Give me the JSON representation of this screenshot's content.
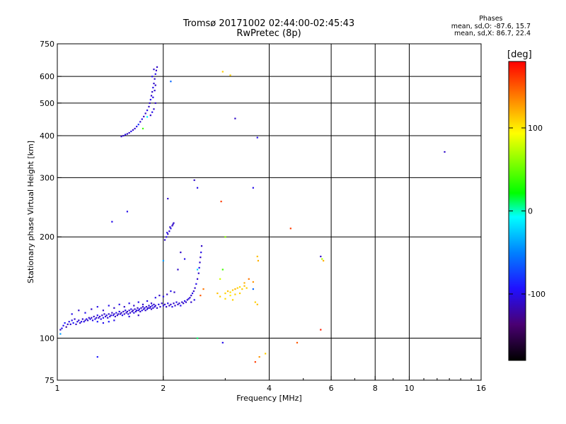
{
  "title": "Tromsø 20171002 02:44:00-02:45:43",
  "subtitle": "RwPretec (8p)",
  "stats": {
    "heading": "Phases",
    "line_o": "mean, sd,O: -87.6, 15.7",
    "line_x": "mean, sd,X:  86.7, 22.4"
  },
  "colorbar": {
    "label": "[deg]",
    "min": -180,
    "max": 180,
    "ticks": [
      {
        "value": 100,
        "label": "100"
      },
      {
        "value": 0,
        "label": "0"
      },
      {
        "value": -100,
        "label": "-100"
      }
    ]
  },
  "chart_data": {
    "type": "scatter",
    "xlabel": "Frequency [MHz]",
    "ylabel": "Stationary phase Virtual Height [km]",
    "xscale": "log",
    "yscale": "log",
    "xlim": [
      1,
      16
    ],
    "ylim": [
      75,
      750
    ],
    "xticks": [
      {
        "value": 1,
        "label": "1"
      },
      {
        "value": 2,
        "label": "2"
      },
      {
        "value": 4,
        "label": "4"
      },
      {
        "value": 6,
        "label": "6"
      },
      {
        "value": 8,
        "label": "8"
      },
      {
        "value": 10,
        "label": "10"
      },
      {
        "value": 16,
        "label": "16"
      }
    ],
    "xgrid": [
      2,
      4,
      6,
      8,
      10
    ],
    "yticks": [
      {
        "value": 75,
        "label": "75"
      },
      {
        "value": 100,
        "label": "100"
      },
      {
        "value": 200,
        "label": "200"
      },
      {
        "value": 300,
        "label": "300"
      },
      {
        "value": 400,
        "label": "400"
      },
      {
        "value": 500,
        "label": "500"
      },
      {
        "value": 600,
        "label": "600"
      },
      {
        "value": 750,
        "label": "750"
      }
    ],
    "ygrid": [
      100,
      200,
      300,
      400,
      500,
      600
    ],
    "grid": true,
    "color_encoding": "phase [deg]",
    "points": [
      [
        1.02,
        106,
        -110
      ],
      [
        1.03,
        107,
        -100
      ],
      [
        1.04,
        109,
        -100
      ],
      [
        1.05,
        111,
        -90
      ],
      [
        1.06,
        108,
        -120
      ],
      [
        1.07,
        110,
        -110
      ],
      [
        1.08,
        112,
        -100
      ],
      [
        1.09,
        110,
        -110
      ],
      [
        1.1,
        113,
        -100
      ],
      [
        1.11,
        111,
        -90
      ],
      [
        1.12,
        114,
        -110
      ],
      [
        1.13,
        110,
        -110
      ],
      [
        1.14,
        112,
        -100
      ],
      [
        1.15,
        113,
        -110
      ],
      [
        1.16,
        111,
        -110
      ],
      [
        1.17,
        112,
        -100
      ],
      [
        1.18,
        114,
        -110
      ],
      [
        1.19,
        112,
        -100
      ],
      [
        1.2,
        113,
        -110
      ],
      [
        1.21,
        114,
        -100
      ],
      [
        1.22,
        113,
        -110
      ],
      [
        1.23,
        115,
        -110
      ],
      [
        1.24,
        114,
        -100
      ],
      [
        1.25,
        115,
        -110
      ],
      [
        1.26,
        113,
        -100
      ],
      [
        1.27,
        116,
        -110
      ],
      [
        1.28,
        114,
        -100
      ],
      [
        1.29,
        115,
        -110
      ],
      [
        1.3,
        117,
        -100
      ],
      [
        1.31,
        115,
        -110
      ],
      [
        1.32,
        116,
        -110
      ],
      [
        1.33,
        114,
        -100
      ],
      [
        1.34,
        117,
        -110
      ],
      [
        1.35,
        115,
        -100
      ],
      [
        1.36,
        118,
        -110
      ],
      [
        1.37,
        116,
        -110
      ],
      [
        1.38,
        117,
        -100
      ],
      [
        1.39,
        115,
        -110
      ],
      [
        1.4,
        118,
        -110
      ],
      [
        1.41,
        116,
        -100
      ],
      [
        1.42,
        117,
        -110
      ],
      [
        1.43,
        119,
        -110
      ],
      [
        1.44,
        117,
        -100
      ],
      [
        1.45,
        118,
        -110
      ],
      [
        1.46,
        116,
        -110
      ],
      [
        1.47,
        119,
        -100
      ],
      [
        1.48,
        117,
        -110
      ],
      [
        1.49,
        118,
        -110
      ],
      [
        1.5,
        120,
        -100
      ],
      [
        1.51,
        118,
        -110
      ],
      [
        1.52,
        119,
        -110
      ],
      [
        1.53,
        117,
        -100
      ],
      [
        1.54,
        120,
        -110
      ],
      [
        1.55,
        118,
        -110
      ],
      [
        1.56,
        121,
        -100
      ],
      [
        1.57,
        119,
        -110
      ],
      [
        1.58,
        120,
        -110
      ],
      [
        1.59,
        118,
        -100
      ],
      [
        1.6,
        121,
        -110
      ],
      [
        1.61,
        119,
        -110
      ],
      [
        1.62,
        122,
        -100
      ],
      [
        1.63,
        120,
        -110
      ],
      [
        1.64,
        121,
        -110
      ],
      [
        1.65,
        119,
        -100
      ],
      [
        1.66,
        122,
        -110
      ],
      [
        1.67,
        120,
        -110
      ],
      [
        1.68,
        121,
        -100
      ],
      [
        1.69,
        123,
        -110
      ],
      [
        1.7,
        121,
        -110
      ],
      [
        1.71,
        122,
        -100
      ],
      [
        1.72,
        120,
        -110
      ],
      [
        1.73,
        123,
        -110
      ],
      [
        1.74,
        121,
        -100
      ],
      [
        1.75,
        124,
        -110
      ],
      [
        1.76,
        122,
        -110
      ],
      [
        1.77,
        123,
        -100
      ],
      [
        1.78,
        121,
        -110
      ],
      [
        1.79,
        124,
        -110
      ],
      [
        1.8,
        122,
        -100
      ],
      [
        1.81,
        123,
        -110
      ],
      [
        1.82,
        125,
        -110
      ],
      [
        1.83,
        123,
        -100
      ],
      [
        1.84,
        124,
        -110
      ],
      [
        1.85,
        122,
        -110
      ],
      [
        1.86,
        125,
        -100
      ],
      [
        1.87,
        123,
        -110
      ],
      [
        1.88,
        126,
        -110
      ],
      [
        1.89,
        124,
        -100
      ],
      [
        1.9,
        125,
        -110
      ],
      [
        1.92,
        123,
        -110
      ],
      [
        1.94,
        126,
        -100
      ],
      [
        1.96,
        124,
        -110
      ],
      [
        1.98,
        127,
        -110
      ],
      [
        2.0,
        125,
        -100
      ],
      [
        2.02,
        126,
        -110
      ],
      [
        2.04,
        124,
        -110
      ],
      [
        2.06,
        127,
        -100
      ],
      [
        2.08,
        125,
        -110
      ],
      [
        2.1,
        126,
        -110
      ],
      [
        2.12,
        124,
        -100
      ],
      [
        2.14,
        127,
        -110
      ],
      [
        2.16,
        125,
        -110
      ],
      [
        2.18,
        128,
        -100
      ],
      [
        2.2,
        126,
        -110
      ],
      [
        2.22,
        127,
        -110
      ],
      [
        2.24,
        125,
        -100
      ],
      [
        2.26,
        128,
        -110
      ],
      [
        2.28,
        127,
        -110
      ],
      [
        2.3,
        129,
        -100
      ],
      [
        2.32,
        128,
        -110
      ],
      [
        2.34,
        130,
        -110
      ],
      [
        2.36,
        131,
        -100
      ],
      [
        2.38,
        132,
        -110
      ],
      [
        2.4,
        134,
        -110
      ],
      [
        2.42,
        136,
        -100
      ],
      [
        2.44,
        138,
        -110
      ],
      [
        2.46,
        141,
        -110
      ],
      [
        2.48,
        145,
        -100
      ],
      [
        2.5,
        150,
        -110
      ],
      [
        2.52,
        156,
        -110
      ],
      [
        2.53,
        162,
        -100
      ],
      [
        2.54,
        168,
        -110
      ],
      [
        2.55,
        174,
        -110
      ],
      [
        2.56,
        180,
        -100
      ],
      [
        2.57,
        188,
        -110
      ],
      [
        1.1,
        118,
        -100
      ],
      [
        1.15,
        121,
        -110
      ],
      [
        1.2,
        119,
        -100
      ],
      [
        1.25,
        122,
        -110
      ],
      [
        1.3,
        124,
        -100
      ],
      [
        1.35,
        121,
        -110
      ],
      [
        1.4,
        125,
        -100
      ],
      [
        1.45,
        123,
        -110
      ],
      [
        1.5,
        126,
        -100
      ],
      [
        1.55,
        124,
        -110
      ],
      [
        1.6,
        127,
        -100
      ],
      [
        1.65,
        125,
        -110
      ],
      [
        1.7,
        128,
        -100
      ],
      [
        1.75,
        126,
        -110
      ],
      [
        1.8,
        129,
        -100
      ],
      [
        1.85,
        127,
        -110
      ],
      [
        1.9,
        132,
        -100
      ],
      [
        1.95,
        134,
        -110
      ],
      [
        2.0,
        133,
        -100
      ],
      [
        2.05,
        135,
        -110
      ],
      [
        2.1,
        138,
        -100
      ],
      [
        2.15,
        137,
        -110
      ],
      [
        1.3,
        112,
        -90
      ],
      [
        1.35,
        111,
        -100
      ],
      [
        1.4,
        112,
        -90
      ],
      [
        1.45,
        113,
        -100
      ],
      [
        1.6,
        116,
        -100
      ],
      [
        1.7,
        117,
        -110
      ],
      [
        2.4,
        128,
        -110
      ],
      [
        2.45,
        130,
        -100
      ],
      [
        1.52,
        398,
        -110
      ],
      [
        1.54,
        400,
        -110
      ],
      [
        1.56,
        403,
        -100
      ],
      [
        1.58,
        405,
        -110
      ],
      [
        1.6,
        408,
        -110
      ],
      [
        1.62,
        412,
        -100
      ],
      [
        1.64,
        416,
        -110
      ],
      [
        1.66,
        420,
        -110
      ],
      [
        1.68,
        426,
        -100
      ],
      [
        1.7,
        432,
        -80
      ],
      [
        1.72,
        440,
        -110
      ],
      [
        1.74,
        448,
        -100
      ],
      [
        1.76,
        456,
        -110
      ],
      [
        1.78,
        466,
        -110
      ],
      [
        1.8,
        476,
        -100
      ],
      [
        1.82,
        488,
        -110
      ],
      [
        1.83,
        500,
        -110
      ],
      [
        1.84,
        512,
        -100
      ],
      [
        1.85,
        526,
        -110
      ],
      [
        1.86,
        540,
        -110
      ],
      [
        1.87,
        556,
        -100
      ],
      [
        1.88,
        572,
        -110
      ],
      [
        1.89,
        590,
        -110
      ],
      [
        1.9,
        610,
        -100
      ],
      [
        1.91,
        625,
        -110
      ],
      [
        1.84,
        460,
        -110
      ],
      [
        1.86,
        470,
        -100
      ],
      [
        1.88,
        480,
        -110
      ],
      [
        1.9,
        500,
        -110
      ],
      [
        1.87,
        520,
        -100
      ],
      [
        1.89,
        545,
        -110
      ],
      [
        1.9,
        565,
        -110
      ],
      [
        1.86,
        600,
        -100
      ],
      [
        1.88,
        630,
        -110
      ],
      [
        1.92,
        640,
        -110
      ],
      [
        2.02,
        196,
        -110
      ],
      [
        2.04,
        200,
        -100
      ],
      [
        2.06,
        204,
        -110
      ],
      [
        2.08,
        208,
        -110
      ],
      [
        2.1,
        212,
        -100
      ],
      [
        2.12,
        216,
        -110
      ],
      [
        2.14,
        220,
        -110
      ],
      [
        2.05,
        206,
        -100
      ],
      [
        2.09,
        214,
        -110
      ],
      [
        2.13,
        218,
        -110
      ],
      [
        2.2,
        160,
        -110
      ],
      [
        2.3,
        172,
        -100
      ],
      [
        2.24,
        180,
        -110
      ],
      [
        2.45,
        295,
        -110
      ],
      [
        2.5,
        280,
        -100
      ],
      [
        2.06,
        260,
        -110
      ],
      [
        1.43,
        222,
        -100
      ],
      [
        1.58,
        238,
        -100
      ],
      [
        1.3,
        88,
        -90
      ],
      [
        1.02,
        103,
        -40
      ],
      [
        1.75,
        420,
        40
      ],
      [
        1.8,
        455,
        -10
      ],
      [
        2.1,
        580,
        -60
      ],
      [
        2.0,
        170,
        -40
      ],
      [
        2.5,
        160,
        -20
      ],
      [
        3.2,
        450,
        -110
      ],
      [
        3.7,
        395,
        -100
      ],
      [
        3.6,
        280,
        -100
      ],
      [
        2.95,
        97,
        -100
      ],
      [
        12.6,
        358,
        -110
      ],
      [
        2.95,
        620,
        110
      ],
      [
        3.1,
        605,
        110
      ],
      [
        2.92,
        255,
        160
      ],
      [
        3.0,
        200,
        60
      ],
      [
        2.9,
        150,
        80
      ],
      [
        2.95,
        160,
        40
      ],
      [
        2.5,
        100,
        10
      ],
      [
        2.6,
        140,
        140
      ],
      [
        2.55,
        134,
        150
      ],
      [
        3.0,
        136,
        110
      ],
      [
        3.05,
        138,
        115
      ],
      [
        3.1,
        137,
        105
      ],
      [
        3.15,
        139,
        110
      ],
      [
        3.2,
        140,
        120
      ],
      [
        3.25,
        141,
        110
      ],
      [
        3.3,
        142,
        105
      ],
      [
        3.35,
        140,
        110
      ],
      [
        3.4,
        143,
        115
      ],
      [
        3.45,
        141,
        110
      ],
      [
        3.1,
        134,
        100
      ],
      [
        3.2,
        135,
        110
      ],
      [
        3.3,
        136,
        110
      ],
      [
        3.0,
        131,
        105
      ],
      [
        2.9,
        133,
        110
      ],
      [
        2.85,
        136,
        115
      ],
      [
        3.15,
        130,
        110
      ],
      [
        3.4,
        146,
        120
      ],
      [
        3.6,
        147,
        130
      ],
      [
        3.5,
        150,
        140
      ],
      [
        3.7,
        175,
        115
      ],
      [
        3.72,
        170,
        120
      ],
      [
        3.65,
        128,
        110
      ],
      [
        3.7,
        126,
        115
      ],
      [
        3.6,
        140,
        -60
      ],
      [
        4.6,
        212,
        160
      ],
      [
        4.8,
        97,
        150
      ],
      [
        3.75,
        88,
        130
      ],
      [
        3.9,
        90,
        110
      ],
      [
        3.65,
        85,
        160
      ],
      [
        5.6,
        175,
        -110
      ],
      [
        5.65,
        172,
        70
      ],
      [
        5.7,
        170,
        120
      ],
      [
        5.6,
        106,
        170
      ]
    ]
  }
}
